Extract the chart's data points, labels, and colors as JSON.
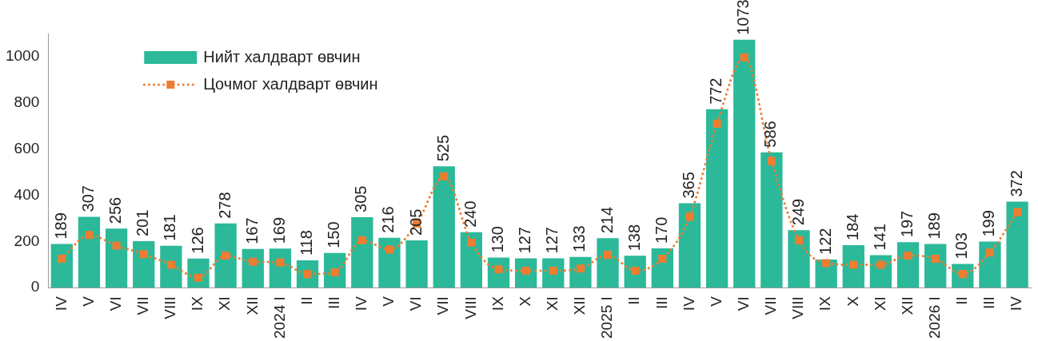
{
  "chart_data": {
    "type": "bar",
    "categories": [
      "IV",
      "V",
      "VI",
      "VII",
      "VIII",
      "IX",
      "XI",
      "XII",
      "2024 I",
      "II",
      "III",
      "IV",
      "V",
      "VI",
      "VII",
      "VIII",
      "IX",
      "X",
      "XI",
      "XII",
      "2025 I",
      "II",
      "III",
      "IV",
      "V",
      "VI",
      "VII",
      "VIII",
      "IX",
      "X",
      "XI",
      "XII",
      "2026 I",
      "II",
      "III",
      "IV"
    ],
    "series": [
      {
        "name": "Нийт халдварт өвчин",
        "color": "#2bb999",
        "values": [
          189,
          307,
          256,
          201,
          181,
          126,
          278,
          167,
          169,
          118,
          150,
          305,
          216,
          205,
          525,
          240,
          130,
          127,
          127,
          133,
          214,
          138,
          170,
          365,
          772,
          1073,
          586,
          249,
          122,
          184,
          141,
          197,
          189,
          103,
          199,
          372
        ],
        "value_labels": [
          "189",
          "307",
          "256",
          "201",
          "181",
          "126",
          "278",
          "167",
          "169",
          "118",
          "150",
          "305",
          "216",
          "205",
          "525",
          "240",
          "130",
          "127",
          "127",
          "133",
          "214",
          "138",
          "170",
          "365",
          "772",
          "1073",
          "586",
          "249",
          "122",
          "184",
          "141",
          "197",
          "189",
          "103",
          "199",
          "372"
        ]
      },
      {
        "name": "Цочмог халдварт өвчин",
        "type": "line",
        "color": "#ed7d31",
        "marker": "square",
        "line_style": "dotted",
        "values": [
          125,
          228,
          182,
          145,
          99,
          43,
          139,
          112,
          109,
          59,
          66,
          205,
          165,
          277,
          482,
          195,
          79,
          73,
          73,
          83,
          142,
          73,
          125,
          307,
          710,
          997,
          548,
          205,
          106,
          99,
          99,
          139,
          125,
          59,
          152,
          327
        ]
      }
    ],
    "ylim": [
      0,
      1100
    ],
    "yticks": [
      0,
      200,
      400,
      600,
      800,
      1000
    ],
    "grid": false,
    "legend": "top left"
  }
}
